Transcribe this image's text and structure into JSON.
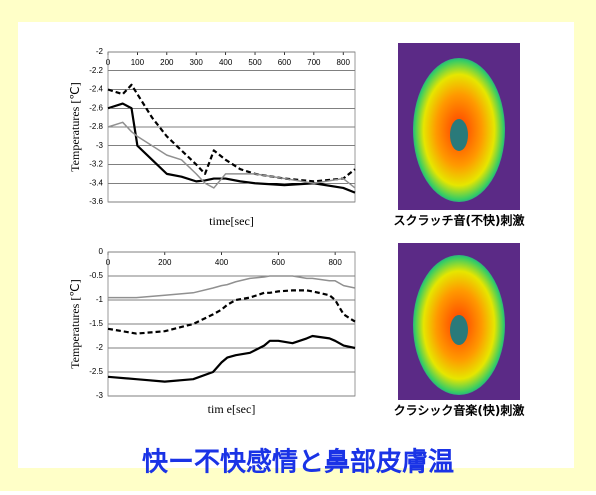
{
  "slide_title": "快ー不快感情と鼻部皮膚温",
  "images": [
    {
      "caption": "スクラッチ音(不快)刺激"
    },
    {
      "caption": "クラシック音楽(快)刺激"
    }
  ],
  "chart_data": [
    {
      "type": "line",
      "x_label": "time[sec]",
      "y_label": "Temperatures [℃]",
      "xlim": [
        0,
        840
      ],
      "xticks": [
        0,
        100,
        200,
        300,
        400,
        500,
        600,
        700,
        800
      ],
      "ylim": [
        -3.6,
        -2
      ],
      "yticks": [
        -2,
        -2.2,
        -2.4,
        -2.6,
        -2.8,
        -3,
        -3.2,
        -3.4,
        -3.6
      ],
      "grid": true,
      "x": [
        0,
        50,
        80,
        100,
        150,
        200,
        250,
        300,
        330,
        360,
        400,
        450,
        500,
        600,
        700,
        800,
        840
      ],
      "series": [
        {
          "color": "#000000",
          "linestyle": "dashed",
          "values": [
            -2.4,
            -2.45,
            -2.35,
            -2.45,
            -2.7,
            -2.9,
            -3.05,
            -3.2,
            -3.3,
            -3.05,
            -3.15,
            -3.25,
            -3.3,
            -3.35,
            -3.38,
            -3.35,
            -3.25
          ]
        },
        {
          "color": "#000000",
          "linestyle": "solid",
          "values": [
            -2.6,
            -2.55,
            -2.6,
            -3.0,
            -3.15,
            -3.3,
            -3.33,
            -3.38,
            -3.37,
            -3.35,
            -3.35,
            -3.38,
            -3.4,
            -3.42,
            -3.4,
            -3.45,
            -3.5
          ]
        },
        {
          "color": "#909090",
          "linestyle": "solid",
          "values": [
            -2.8,
            -2.75,
            -2.85,
            -2.9,
            -3.0,
            -3.1,
            -3.15,
            -3.3,
            -3.4,
            -3.45,
            -3.3,
            -3.3,
            -3.3,
            -3.35,
            -3.4,
            -3.35,
            -3.45
          ]
        }
      ]
    },
    {
      "type": "line",
      "x_label": "tim e[sec]",
      "y_label": "Temperatures [℃]",
      "xlim": [
        0,
        870
      ],
      "xticks": [
        0,
        200,
        400,
        600,
        800
      ],
      "ylim": [
        -3,
        0
      ],
      "yticks": [
        0,
        -0.5,
        -1,
        -1.5,
        -2,
        -2.5,
        -3
      ],
      "grid": true,
      "x": [
        0,
        100,
        200,
        300,
        370,
        400,
        420,
        450,
        500,
        550,
        570,
        600,
        650,
        700,
        720,
        780,
        800,
        830,
        870
      ],
      "series": [
        {
          "color": "#909090",
          "linestyle": "solid",
          "values": [
            -0.95,
            -0.95,
            -0.9,
            -0.85,
            -0.75,
            -0.7,
            -0.68,
            -0.62,
            -0.55,
            -0.52,
            -0.5,
            -0.5,
            -0.5,
            -0.55,
            -0.55,
            -0.6,
            -0.6,
            -0.7,
            -0.75
          ]
        },
        {
          "color": "#000000",
          "linestyle": "dashed",
          "values": [
            -1.6,
            -1.7,
            -1.65,
            -1.5,
            -1.3,
            -1.2,
            -1.1,
            -1.0,
            -0.95,
            -0.85,
            -0.85,
            -0.82,
            -0.8,
            -0.8,
            -0.82,
            -0.9,
            -1.0,
            -1.3,
            -1.45
          ]
        },
        {
          "color": "#000000",
          "linestyle": "solid",
          "values": [
            -2.6,
            -2.65,
            -2.7,
            -2.65,
            -2.5,
            -2.3,
            -2.2,
            -2.15,
            -2.1,
            -1.95,
            -1.85,
            -1.85,
            -1.9,
            -1.8,
            -1.75,
            -1.8,
            -1.85,
            -1.95,
            -2.0
          ]
        }
      ]
    }
  ]
}
